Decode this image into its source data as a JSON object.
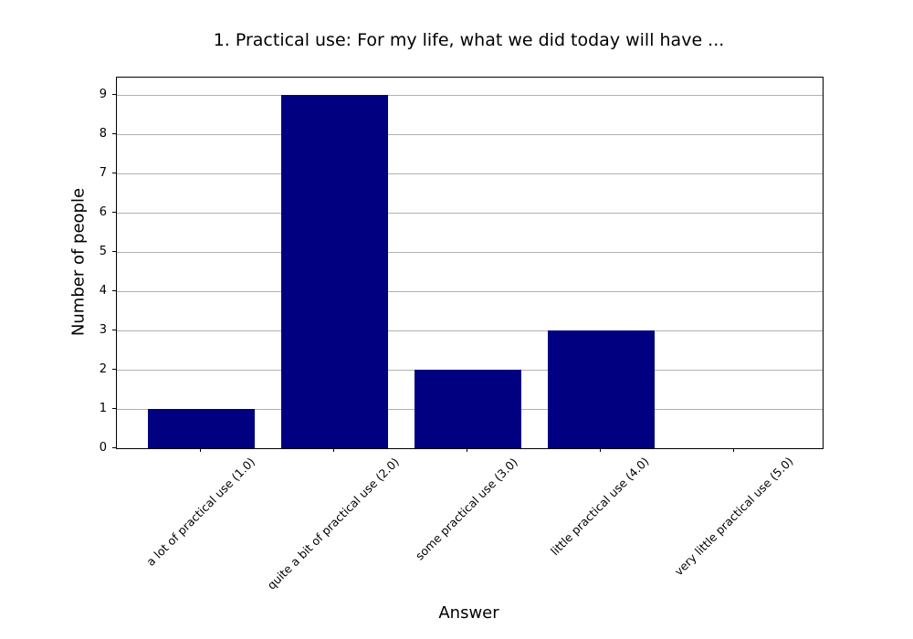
{
  "chart_data": {
    "type": "bar",
    "title": "1. Practical use: For my life, what we did today will have ...",
    "xlabel": "Answer",
    "ylabel": "Number of people",
    "categories": [
      "a lot of practical use (1.0)",
      "quite a bit of practical use (2.0)",
      "some practical use (3.0)",
      "little practical use (4.0)",
      "very little practical use (5.0)"
    ],
    "values": [
      1,
      9,
      2,
      3,
      0
    ],
    "yticks": [
      0,
      1,
      2,
      3,
      4,
      5,
      6,
      7,
      8,
      9
    ],
    "ylim": [
      0,
      9.45
    ],
    "x_tick_rotation": -45,
    "bar_color": "#000080",
    "grid": "horizontal",
    "grid_color": "#b0b0b0",
    "axis_color": "#000000",
    "background_color": "#ffffff",
    "legend": "none"
  }
}
